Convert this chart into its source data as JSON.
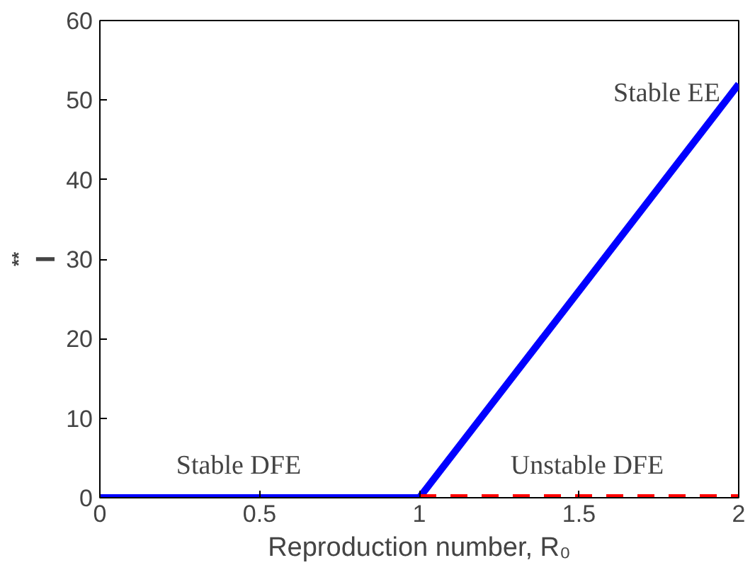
{
  "chart_data": {
    "type": "line",
    "xlabel": "Reproduction number, R₀",
    "ylabel": "I$^{**}$",
    "xlim": [
      0,
      2
    ],
    "ylim": [
      0,
      60
    ],
    "xticks": [
      0,
      0.5,
      1,
      1.5,
      2
    ],
    "yticks": [
      0,
      10,
      20,
      30,
      40,
      50,
      60
    ],
    "grid": false,
    "marker": "none",
    "series": [
      {
        "color": "#0000ff",
        "x": [
          0,
          1,
          2
        ],
        "values": [
          0,
          0,
          52
        ],
        "line_style": "solid"
      },
      {
        "color": "#ff0000",
        "x": [
          1,
          2
        ],
        "values": [
          0,
          0
        ],
        "line_style": "dashed"
      }
    ],
    "annotations": [
      "Stable EE",
      "Stable DFE",
      "Unstable DFE"
    ]
  }
}
